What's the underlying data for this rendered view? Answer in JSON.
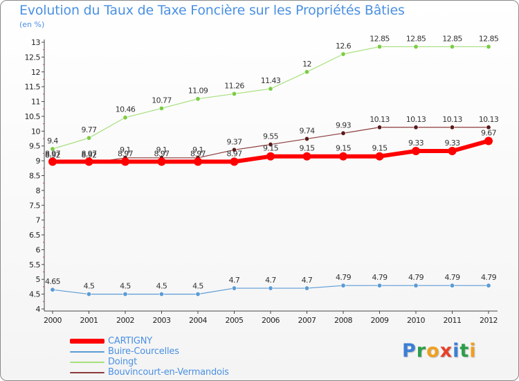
{
  "header": {
    "title": "Evolution du Taux de Taxe Foncière sur les Propriétés Bâties",
    "unit": "(en %)"
  },
  "logo": {
    "text": "Proxiti",
    "letters": [
      {
        "ch": "P",
        "color": "#3a7fd5"
      },
      {
        "ch": "r",
        "color": "#2e9e4a"
      },
      {
        "ch": "o",
        "color": "#f0a020"
      },
      {
        "ch": "x",
        "color": "#e8402a"
      },
      {
        "ch": "i",
        "color": "#3a7fd5"
      },
      {
        "ch": "t",
        "color": "#2e9e4a"
      },
      {
        "ch": "i",
        "color": "#f0a020"
      }
    ]
  },
  "chart_data": {
    "type": "line",
    "title": "Evolution du Taux de Taxe Foncière sur les Propriétés Bâties",
    "ylabel": "(en %)",
    "xlabel": "",
    "x": [
      "2000",
      "2001",
      "2002",
      "2003",
      "2004",
      "2005",
      "2006",
      "2007",
      "2008",
      "2009",
      "2010",
      "2011",
      "2012"
    ],
    "ylim": [
      4,
      13
    ],
    "ytick_step": 0.5,
    "yticks": [
      "4",
      "4.5",
      "5",
      "5.5",
      "6",
      "6.5",
      "7",
      "7.5",
      "8",
      "8.5",
      "9",
      "9.5",
      "10",
      "10.5",
      "11",
      "11.5",
      "12",
      "12.5",
      "13"
    ],
    "grid": false,
    "legend_position": "bottom-left",
    "series": [
      {
        "name": "Buire-Courcelles",
        "color": "#5b9bd5",
        "marker": "#5b9bd5",
        "width": 1.2,
        "values": [
          4.65,
          4.5,
          4.5,
          4.5,
          4.5,
          4.7,
          4.7,
          4.7,
          4.79,
          4.79,
          4.79,
          4.79,
          4.79
        ],
        "labels": [
          "4.65",
          "4.5",
          "4.5",
          "4.5",
          "4.5",
          "4.7",
          "4.7",
          "4.7",
          "4.79",
          "4.79",
          "4.79",
          "4.79",
          "4.79"
        ]
      },
      {
        "name": "Doingt",
        "color": "#a6e07a",
        "marker": "#7ccc44",
        "width": 1.2,
        "values": [
          9.4,
          9.77,
          10.46,
          10.77,
          11.09,
          11.26,
          11.43,
          12,
          12.6,
          12.85,
          12.85,
          12.85,
          12.85
        ],
        "labels": [
          "9.4",
          "9.77",
          "10.46",
          "10.77",
          "11.09",
          "11.26",
          "11.43",
          "12",
          "12.6",
          "12.85",
          "12.85",
          "12.85",
          "12.85"
        ]
      },
      {
        "name": "Bouvincourt-en-Vermandois",
        "color": "#8b3a3a",
        "marker": "#5a1a1a",
        "width": 1.2,
        "values": [
          8.92,
          8.92,
          9.1,
          9.1,
          9.1,
          9.37,
          9.55,
          9.74,
          9.93,
          10.13,
          10.13,
          10.13,
          10.13
        ],
        "labels": [
          "8.92",
          "8.92",
          "9.1",
          "9.1",
          "9.1",
          "9.37",
          "9.55",
          "9.74",
          "9.93",
          "10.13",
          "10.13",
          "10.13",
          "10.13"
        ]
      },
      {
        "name": "CARTIGNY",
        "color": "#ff0000",
        "marker": "#ff0000",
        "width": 6,
        "values": [
          8.97,
          8.97,
          8.97,
          8.97,
          8.97,
          8.97,
          9.15,
          9.15,
          9.15,
          9.15,
          9.33,
          9.33,
          9.67
        ],
        "labels": [
          "8.97",
          "8.97",
          "8.97",
          "8.97",
          "8.97",
          "8.97",
          "9.15",
          "9.15",
          "9.15",
          "9.15",
          "9.33",
          "9.33",
          "9.67"
        ]
      }
    ],
    "legend_order": [
      "CARTIGNY",
      "Buire-Courcelles",
      "Doingt",
      "Bouvincourt-en-Vermandois"
    ]
  }
}
